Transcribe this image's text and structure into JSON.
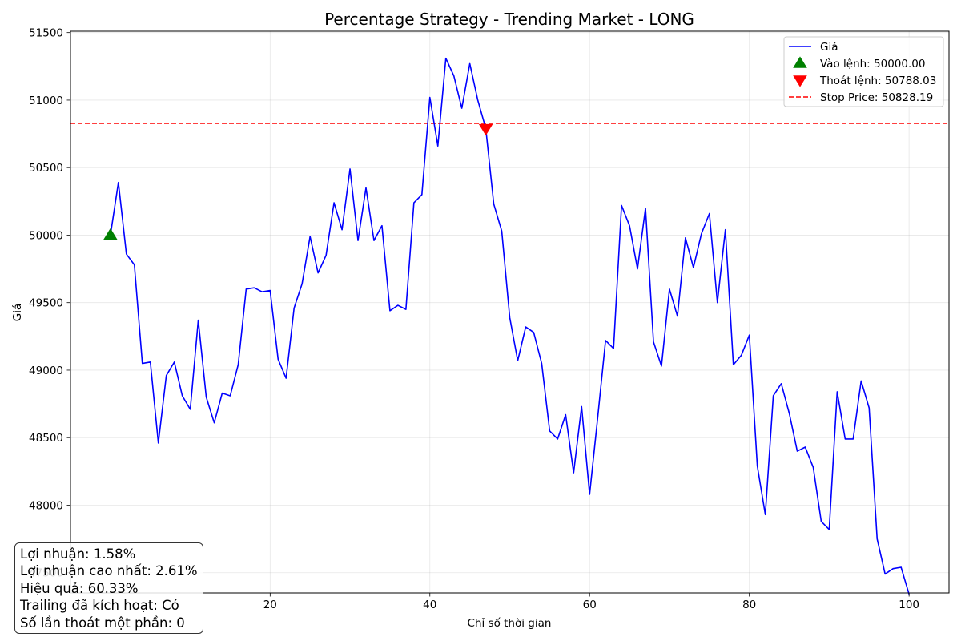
{
  "chart_data": {
    "type": "line",
    "title": "Percentage Strategy - Trending Market - LONG",
    "xlabel": "Chỉ số thời gian",
    "ylabel": "Giá",
    "xlim": [
      -5,
      105
    ],
    "ylim": [
      47350,
      51510
    ],
    "x_ticks": [
      20,
      40,
      60,
      80,
      100
    ],
    "y_ticks": [
      47500,
      48000,
      48500,
      49000,
      49500,
      50000,
      50500,
      51000,
      51500
    ],
    "grid": true,
    "legend_position": "top-right",
    "series": [
      {
        "name": "Giá",
        "color": "#0000ff",
        "x_start": 0,
        "values": [
          50000,
          50390,
          49860,
          49780,
          49050,
          49060,
          48460,
          48960,
          49060,
          48810,
          48710,
          49370,
          48800,
          48610,
          48830,
          48810,
          49040,
          49600,
          49610,
          49580,
          49590,
          49080,
          48940,
          49460,
          49640,
          49990,
          49720,
          49850,
          50240,
          50040,
          50490,
          49960,
          50350,
          49960,
          50070,
          49440,
          49480,
          49450,
          50240,
          50300,
          51020,
          50660,
          51310,
          51180,
          50940,
          51270,
          51000,
          50790,
          50230,
          50030,
          49390,
          49070,
          49320,
          49280,
          49050,
          48550,
          48490,
          48670,
          48240,
          48730,
          48080,
          48640,
          49220,
          49160,
          50220,
          50070,
          49750,
          50200,
          49210,
          49030,
          49600,
          49400,
          49980,
          49760,
          50010,
          50160,
          49500,
          50040,
          49040,
          49110,
          49260,
          48290,
          47930,
          48810,
          48900,
          48680,
          48400,
          48430,
          48280,
          47880,
          47820,
          48840,
          48490,
          48490,
          48920,
          48720,
          47750,
          47490,
          47530,
          47540,
          47340
        ]
      }
    ],
    "markers": [
      {
        "name": "Vào lệnh: 50000.00",
        "x": 0,
        "y": 50000,
        "shape": "triangle-up",
        "color": "#008000"
      },
      {
        "name": "Thoát lệnh: 50788.03",
        "x": 47,
        "y": 50788.03,
        "shape": "triangle-down",
        "color": "#ff0000"
      }
    ],
    "hlines": [
      {
        "name": "Stop Price: 50828.19",
        "y": 50828.19,
        "color": "#ff0000",
        "style": "dashed"
      }
    ],
    "annotation_lines": [
      "Lợi nhuận: 1.58%",
      "Lợi nhuận cao nhất: 2.61%",
      "Hiệu quả: 60.33%",
      "Trailing đã kích hoạt: Có",
      "Số lần thoát một phần: 0"
    ]
  }
}
